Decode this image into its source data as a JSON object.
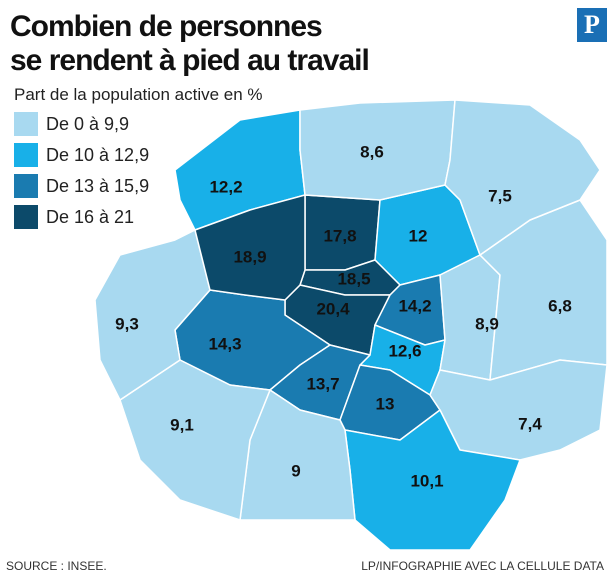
{
  "title": "Combien de personnes se rendent à pied au travail",
  "logo": "P",
  "legend": {
    "title": "Part de la population active en %",
    "classes": [
      {
        "label": "De 0 à 9,9",
        "min": 0,
        "max": 9.9,
        "color": "#a8d9f0"
      },
      {
        "label": "De 10 à 12,9",
        "min": 10,
        "max": 12.9,
        "color": "#18b0e8"
      },
      {
        "label": "De 13 à 15,9",
        "min": 13,
        "max": 15.9,
        "color": "#1a7bb0"
      },
      {
        "label": "De 16 à 21",
        "min": 16,
        "max": 21,
        "color": "#0c4a6a"
      }
    ]
  },
  "map": {
    "values": [
      17.8,
      12,
      18.5,
      20.4,
      14.2,
      12.6,
      14.3,
      13.7,
      13,
      8.9,
      6.8,
      7.4,
      10.1,
      9,
      9.1,
      9.3,
      12.2,
      8.6,
      7.5,
      18.9
    ],
    "value_labels": [
      "17,8",
      "12",
      "18,5",
      "20,4",
      "14,2",
      "12,6",
      "14,3",
      "13,7",
      "13",
      "8,9",
      "6,8",
      "7,4",
      "10,1",
      "9",
      "9,1",
      "9,3",
      "12,2",
      "8,6",
      "7,5",
      "18,9"
    ]
  },
  "source": "SOURCE : INSEE.",
  "credit": "LP/INFOGRAPHIE AVEC LA CELLULE DATA"
}
